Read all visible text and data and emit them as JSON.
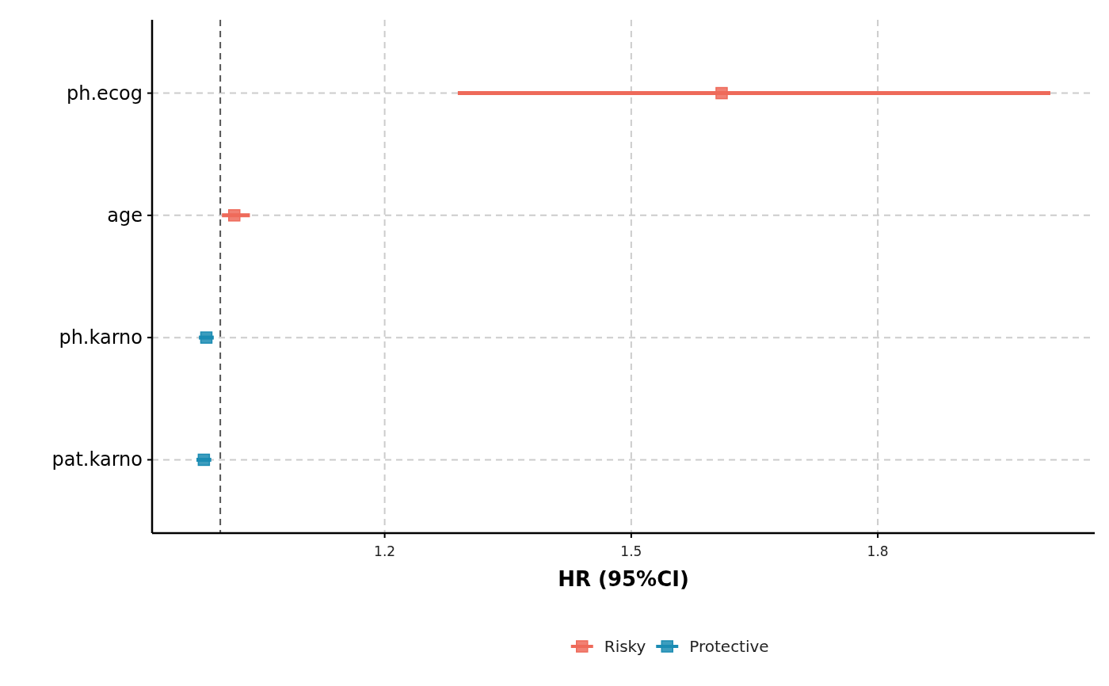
{
  "chart_data": {
    "type": "scatter",
    "orientation": "horizontal",
    "categories": [
      "ph.ecog",
      "age",
      "ph.karno",
      "pat.karno"
    ],
    "series": [
      {
        "name": "Risky",
        "color": "#ee6a5a",
        "values": [
          1.61,
          1.017,
          null,
          null
        ],
        "errors": [
          [
            1.289,
            2.01
          ],
          [
            1.002,
            1.036
          ],
          null,
          null
        ]
      },
      {
        "name": "Protective",
        "color": "#1b8cb3",
        "values": [
          null,
          null,
          0.983,
          0.98
        ],
        "errors": [
          null,
          null,
          [
            0.974,
            0.992
          ],
          [
            0.971,
            0.989
          ]
        ]
      }
    ],
    "xlim": [
      0.917,
      2.064
    ],
    "xticks": [
      1.2,
      1.5,
      1.8
    ],
    "xlabel": "HR (95%CI)",
    "grid": true,
    "legend": "bottom",
    "marker": "square",
    "ref_lines": [
      {
        "axis": "x",
        "value": 1,
        "line_style": "dashed",
        "color": "#555555"
      }
    ]
  }
}
